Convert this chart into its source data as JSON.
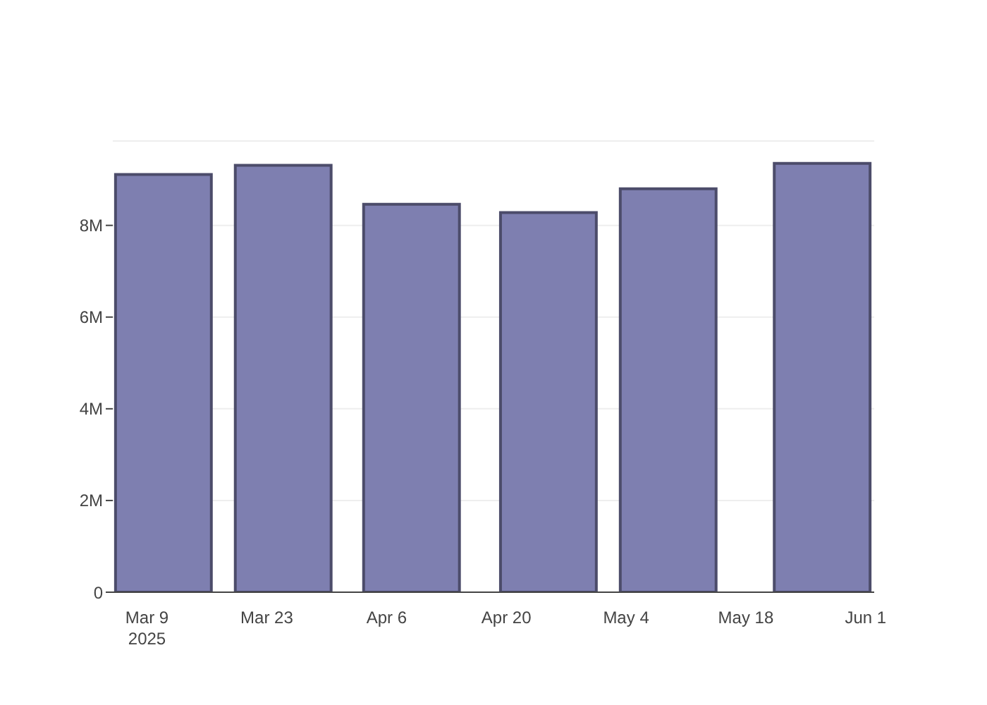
{
  "chart_data": {
    "type": "bar",
    "x": [
      "2025-03-11",
      "2025-03-25",
      "2025-04-09",
      "2025-04-25",
      "2025-05-09",
      "2025-05-27"
    ],
    "values": [
      9110000,
      9310000,
      8460000,
      8280000,
      8800000,
      9350000
    ],
    "color": "#7e7fb0",
    "xlim": [
      "2025-03-05",
      "2025-06-02"
    ],
    "xticks": [
      {
        "value": "2025-03-09",
        "label": "Mar 9\n2025"
      },
      {
        "value": "2025-03-23",
        "label": "Mar 23"
      },
      {
        "value": "2025-04-06",
        "label": "Apr 6"
      },
      {
        "value": "2025-04-20",
        "label": "Apr 20"
      },
      {
        "value": "2025-05-04",
        "label": "May 4"
      },
      {
        "value": "2025-05-18",
        "label": "May 18"
      },
      {
        "value": "2025-06-01",
        "label": "Jun 1"
      }
    ],
    "ylim": [
      0,
      9840000
    ],
    "yticks": [
      {
        "value": 0,
        "label": "0"
      },
      {
        "value": 2000000,
        "label": "2M"
      },
      {
        "value": 4000000,
        "label": "4M"
      },
      {
        "value": 6000000,
        "label": "6M"
      },
      {
        "value": 8000000,
        "label": "8M"
      }
    ],
    "grid": "y"
  }
}
